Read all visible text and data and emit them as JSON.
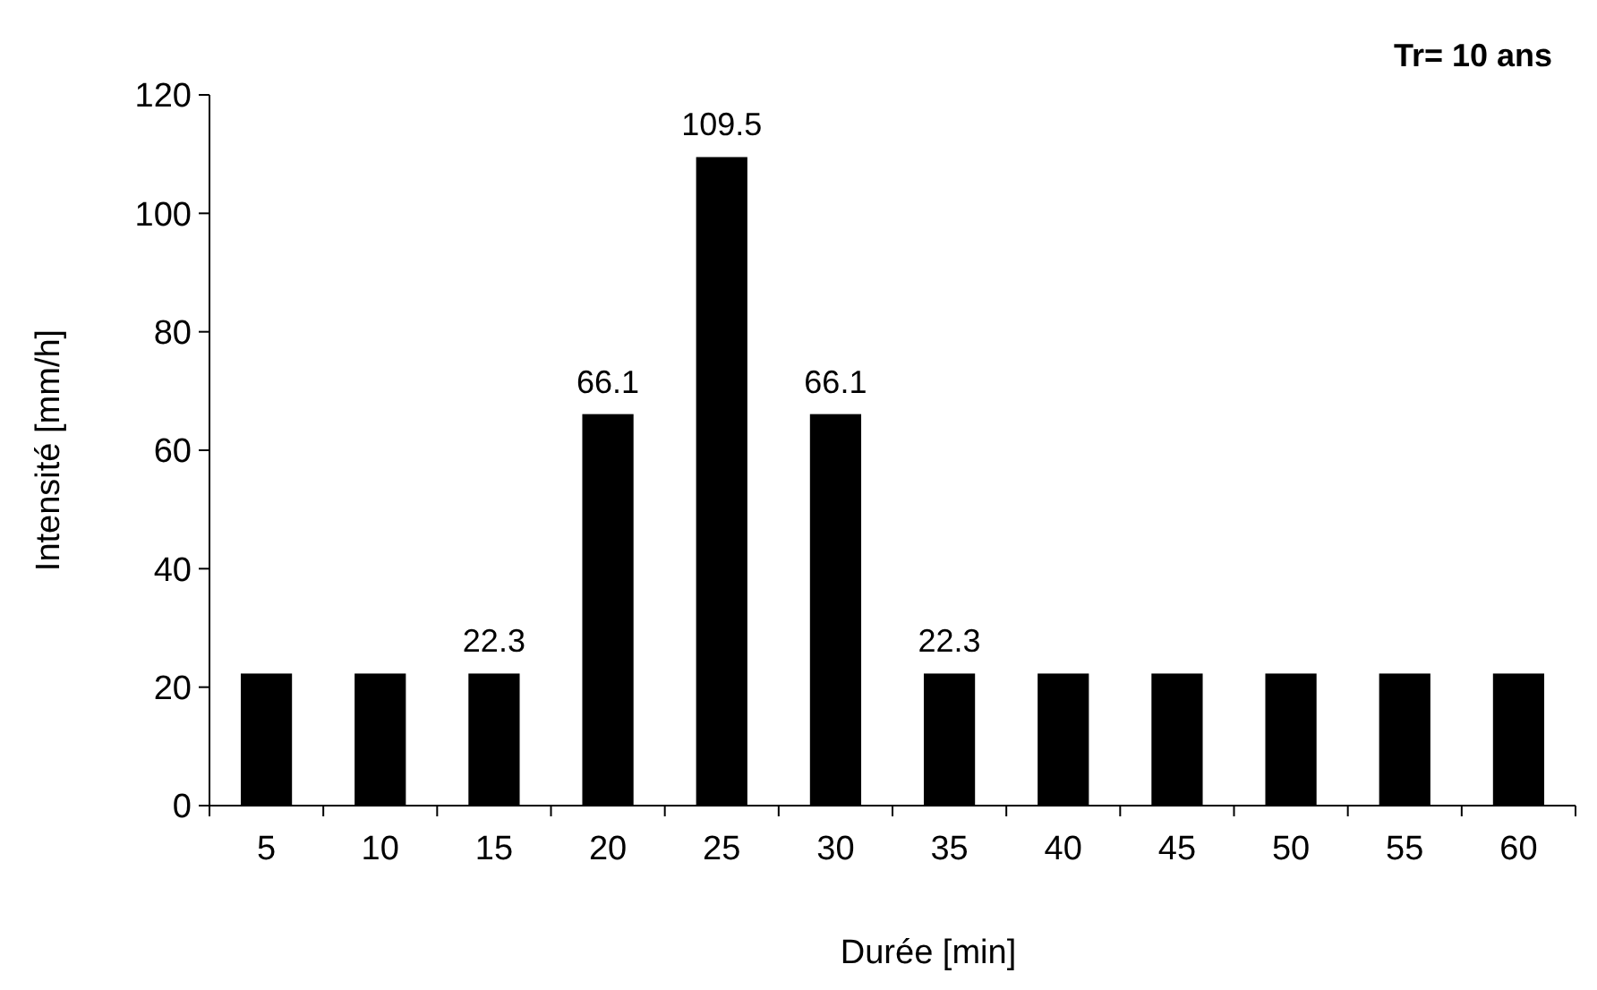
{
  "chart_data": {
    "type": "bar",
    "title": "Tr= 10 ans",
    "xlabel": "Durée [min]",
    "ylabel": "Intensité [mm/h]",
    "categories": [
      "5",
      "10",
      "15",
      "20",
      "25",
      "30",
      "35",
      "40",
      "45",
      "50",
      "55",
      "60"
    ],
    "values": [
      22.3,
      22.3,
      22.3,
      66.1,
      109.5,
      66.1,
      22.3,
      22.3,
      22.3,
      22.3,
      22.3,
      22.3
    ],
    "value_labels": [
      null,
      null,
      "22.3",
      "66.1",
      "109.5",
      "66.1",
      "22.3",
      null,
      null,
      null,
      null,
      null
    ],
    "color": "#000000",
    "ylim": [
      0,
      120
    ],
    "yticks": [
      0,
      20,
      40,
      60,
      80,
      100,
      120
    ],
    "grid": false
  }
}
